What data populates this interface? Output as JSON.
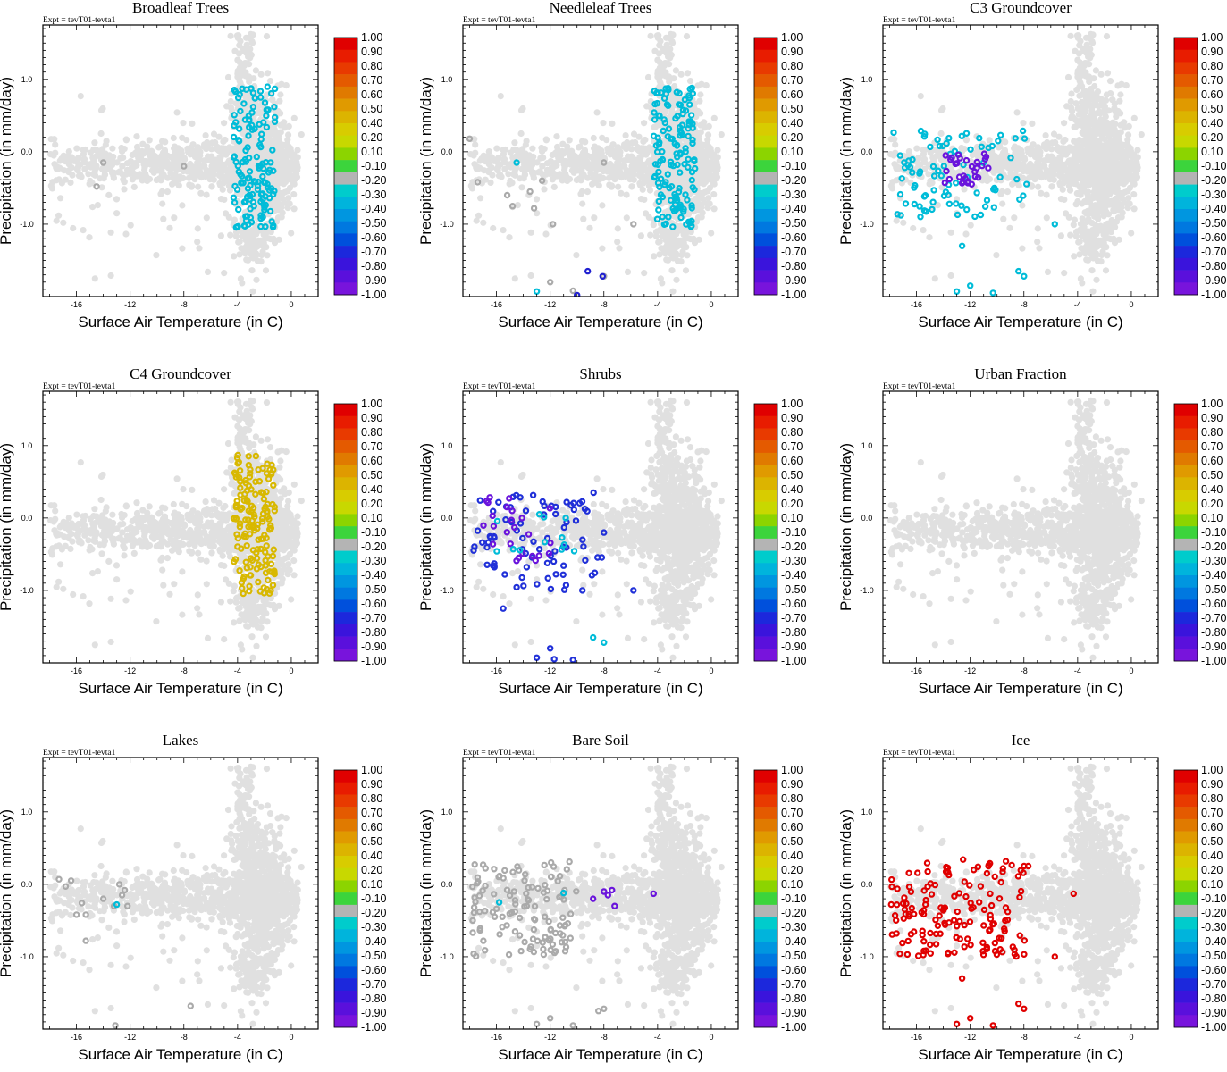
{
  "figure": {
    "expt_label": "Expt = tevT01-tevta1",
    "xlabel": "Surface Air Temperature (in C)",
    "ylabel": "Precipitation (in mm/day)",
    "xticks": [
      "-16",
      "-12",
      "-8",
      "-4",
      "0"
    ],
    "xtick_values": [
      -16,
      -12,
      -8,
      -4,
      0
    ],
    "yticks": [
      "1.0",
      "0.0",
      "-1.0"
    ],
    "ytick_values": [
      1.0,
      0.0,
      -1.0
    ],
    "xlim": [
      -18.5,
      2
    ],
    "ylim": [
      -2.0,
      1.75
    ],
    "background_point_color": "#e0e0e0"
  },
  "colorbar": {
    "labels": [
      "1.00",
      "0.90",
      "0.80",
      "0.70",
      "0.60",
      "0.50",
      "0.40",
      "0.20",
      "0.10",
      "-0.10",
      "-0.20",
      "-0.30",
      "-0.40",
      "-0.50",
      "-0.60",
      "-0.70",
      "-0.80",
      "-0.90",
      "-1.00"
    ],
    "colors": [
      "#e00000",
      "#e81c00",
      "#e83a00",
      "#e45a00",
      "#e07a00",
      "#e09a00",
      "#dcb400",
      "#d8cc00",
      "#c8d800",
      "#8cd400",
      "#3cd43c",
      "#b4b4b4",
      "#00cccc",
      "#00b4dc",
      "#0096e0",
      "#0078e0",
      "#0050dc",
      "#1c28dc",
      "#3a14dc",
      "#5a10dc",
      "#7814dc"
    ]
  },
  "chart_data": [
    {
      "type": "scatter",
      "title": "Broadleaf Trees",
      "highlight_groups": [
        {
          "color": "#00bcd8",
          "correlation": "-0.20",
          "x_range": [
            -4.3,
            -1.2
          ],
          "y_range": [
            -1.05,
            0.9
          ],
          "count": 140
        },
        {
          "color": "#aaaaaa",
          "correlation": "-0.10",
          "points": [
            [
              -14.0,
              -0.15
            ],
            [
              -8.0,
              -0.2
            ],
            [
              -14.5,
              -0.48
            ]
          ]
        }
      ]
    },
    {
      "type": "scatter",
      "title": "Needleleaf Trees",
      "highlight_groups": [
        {
          "color": "#00bcd8",
          "correlation": "-0.20",
          "x_range": [
            -4.3,
            -1.2
          ],
          "y_range": [
            -1.05,
            0.9
          ],
          "count": 140
        },
        {
          "color": "#aaaaaa",
          "correlation": "-0.10",
          "points": [
            [
              -18.0,
              0.18
            ],
            [
              -17.4,
              -0.42
            ],
            [
              -15.2,
              -0.6
            ],
            [
              -14.8,
              -0.75
            ],
            [
              -13.5,
              -0.55
            ],
            [
              -12.6,
              -0.4
            ],
            [
              -13.2,
              -0.78
            ],
            [
              -8.0,
              -0.15
            ],
            [
              -5.8,
              -1.0
            ],
            [
              -11.8,
              -1.0
            ],
            [
              -12.0,
              -1.8
            ],
            [
              -10.3,
              -1.92
            ],
            [
              -8.0,
              -1.72
            ]
          ]
        },
        {
          "color": "#2020d0",
          "correlation": "-0.80",
          "points": [
            [
              -9.2,
              -1.65
            ],
            [
              -10.0,
              -1.98
            ],
            [
              -8.1,
              -1.72
            ]
          ]
        },
        {
          "color": "#00bcd8",
          "correlation": "-0.20",
          "points": [
            [
              -13.0,
              -1.93
            ],
            [
              -14.5,
              -0.15
            ]
          ]
        }
      ]
    },
    {
      "type": "scatter",
      "title": "C3 Groundcover",
      "highlight_groups": [
        {
          "color": "#00bcd8",
          "correlation": "-0.20",
          "x_range": [
            -17.8,
            -7.8
          ],
          "y_range": [
            -0.9,
            0.3
          ],
          "count": 85
        },
        {
          "color": "#6a14dc",
          "correlation": "-0.90",
          "x_range": [
            -14.0,
            -10.5
          ],
          "y_range": [
            -0.45,
            0.0
          ],
          "count": 30
        },
        {
          "color": "#00bcd8",
          "correlation": "-0.20",
          "points": [
            [
              -12.0,
              -1.85
            ],
            [
              -10.3,
              -1.95
            ],
            [
              -8.0,
              -1.72
            ],
            [
              -5.7,
              -1.0
            ],
            [
              -12.6,
              -1.3
            ],
            [
              -13.0,
              -1.93
            ],
            [
              -8.4,
              -1.65
            ]
          ]
        }
      ]
    },
    {
      "type": "scatter",
      "title": "C4 Groundcover",
      "highlight_groups": [
        {
          "color": "#d8b800",
          "correlation": "0.50",
          "x_range": [
            -4.3,
            -1.2
          ],
          "y_range": [
            -1.05,
            0.9
          ],
          "count": 150
        }
      ]
    },
    {
      "type": "scatter",
      "title": "Shrubs",
      "highlight_groups": [
        {
          "color": "#2030d8",
          "correlation": "-0.70",
          "x_range": [
            -17.8,
            -8.0
          ],
          "y_range": [
            -1.0,
            0.35
          ],
          "count": 80
        },
        {
          "color": "#6a14dc",
          "correlation": "-0.90",
          "x_range": [
            -17.0,
            -11.0
          ],
          "y_range": [
            -0.6,
            0.3
          ],
          "count": 25
        },
        {
          "color": "#00bcd8",
          "correlation": "-0.20",
          "x_range": [
            -17.0,
            -10.0
          ],
          "y_range": [
            -0.5,
            0.1
          ],
          "count": 12
        },
        {
          "color": "#2030d8",
          "correlation": "-0.70",
          "points": [
            [
              -12.0,
              -1.8
            ],
            [
              -11.7,
              -1.95
            ],
            [
              -13.0,
              -1.93
            ],
            [
              -10.3,
              -1.96
            ],
            [
              -8.0,
              -0.2
            ],
            [
              -5.8,
              -1.0
            ],
            [
              -9.6,
              -1.0
            ],
            [
              -15.5,
              -1.25
            ]
          ]
        },
        {
          "color": "#00bcd8",
          "correlation": "-0.20",
          "points": [
            [
              -8.8,
              -1.65
            ],
            [
              -8.0,
              -1.72
            ]
          ]
        }
      ]
    },
    {
      "type": "scatter",
      "title": "Urban Fraction",
      "highlight_groups": []
    },
    {
      "type": "scatter",
      "title": "Lakes",
      "highlight_groups": [
        {
          "color": "#aaaaaa",
          "correlation": "-0.10",
          "points": [
            [
              -17.3,
              0.07
            ],
            [
              -16.8,
              -0.03
            ],
            [
              -16.4,
              0.05
            ],
            [
              -15.6,
              -0.26
            ],
            [
              -15.3,
              -0.42
            ],
            [
              -14.0,
              -0.2
            ],
            [
              -13.2,
              -0.3
            ],
            [
              -12.8,
              0.0
            ],
            [
              -12.2,
              -0.3
            ],
            [
              -12.6,
              -0.15
            ],
            [
              -12.4,
              -0.08
            ],
            [
              -16.0,
              -0.42
            ],
            [
              -15.3,
              -0.78
            ],
            [
              -7.5,
              -1.68
            ],
            [
              -13.1,
              -1.95
            ]
          ]
        },
        {
          "color": "#00bcd8",
          "correlation": "-0.20",
          "points": [
            [
              -13.0,
              -0.28
            ]
          ]
        }
      ]
    },
    {
      "type": "scatter",
      "title": "Bare Soil",
      "highlight_groups": [
        {
          "color": "#aaaaaa",
          "correlation": "-0.10",
          "x_range": [
            -17.8,
            -10.0
          ],
          "y_range": [
            -1.0,
            0.35
          ],
          "count": 120
        },
        {
          "color": "#6a14dc",
          "correlation": "-0.90",
          "points": [
            [
              -8.0,
              -0.1
            ],
            [
              -7.4,
              -0.08
            ],
            [
              -8.8,
              -0.2
            ],
            [
              -7.7,
              -0.15
            ],
            [
              -7.2,
              -0.3
            ],
            [
              -4.3,
              -0.13
            ]
          ]
        },
        {
          "color": "#00bcd8",
          "correlation": "-0.20",
          "points": [
            [
              -15.8,
              -0.25
            ],
            [
              -11.0,
              -0.12
            ]
          ]
        },
        {
          "color": "#aaaaaa",
          "correlation": "-0.10",
          "points": [
            [
              -12.0,
              -1.85
            ],
            [
              -10.3,
              -1.95
            ],
            [
              -8.0,
              -1.72
            ],
            [
              -13.0,
              -1.93
            ],
            [
              -8.4,
              -1.75
            ]
          ]
        }
      ]
    },
    {
      "type": "scatter",
      "title": "Ice",
      "highlight_groups": [
        {
          "color": "#e00000",
          "correlation": "1.00",
          "x_range": [
            -18.0,
            -7.6
          ],
          "y_range": [
            -1.0,
            0.35
          ],
          "count": 150
        },
        {
          "color": "#e00000",
          "correlation": "1.00",
          "points": [
            [
              -4.3,
              -0.13
            ],
            [
              -5.7,
              -1.0
            ],
            [
              -12.0,
              -1.85
            ],
            [
              -10.3,
              -1.95
            ],
            [
              -8.0,
              -1.72
            ],
            [
              -12.6,
              -1.3
            ],
            [
              -8.4,
              -1.65
            ],
            [
              -13.0,
              -1.93
            ]
          ]
        }
      ]
    }
  ]
}
